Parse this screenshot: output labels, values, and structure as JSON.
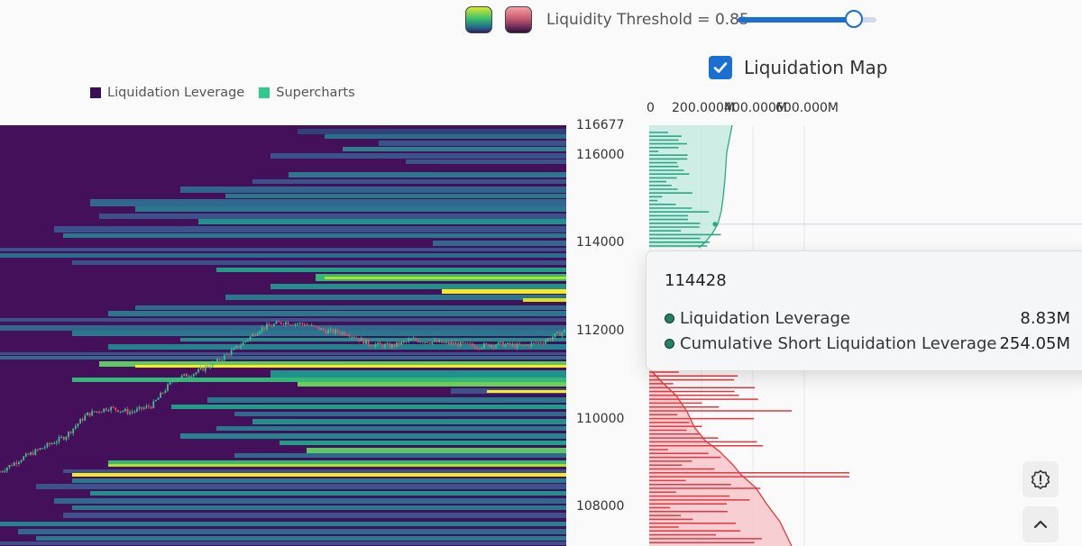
{
  "toolbar": {
    "threshold_label": "Liquidity Threshold = 0.85",
    "threshold_value": 0.85,
    "slider_fraction": 0.84,
    "palette_options": [
      "viridis-swatch",
      "red-swatch"
    ],
    "liquidation_map_label": "Liquidation Map",
    "liquidation_map_checked": true
  },
  "legend": {
    "items": [
      {
        "label": "Liquidation Leverage",
        "color": "#3b0f55"
      },
      {
        "label": "Supercharts",
        "color": "#2ecc8a"
      }
    ]
  },
  "y_axis": {
    "ticks": [
      "116677",
      "116000",
      "114000",
      "112000",
      "110000",
      "108000"
    ],
    "tick_values": [
      116677,
      116000,
      114000,
      112000,
      110000,
      108000
    ]
  },
  "profile_axis": {
    "ticks": [
      "0",
      "200.000M",
      "400.000M",
      "600.000M"
    ],
    "tick_values": [
      0,
      200,
      400,
      600
    ]
  },
  "tooltip": {
    "price": "114428",
    "rows": [
      {
        "name": "Liquidation Leverage",
        "value": "8.83M"
      },
      {
        "name": "Cumulative Short Liquidation Leverage",
        "value": "254.05M"
      }
    ]
  },
  "colors": {
    "heatmap_bg": "#44105a",
    "viridis_low": "#3b528b",
    "viridis_mid": "#21918c",
    "viridis_high": "#5ec962",
    "viridis_max": "#fde725",
    "short_liq": "#2aa784",
    "long_liq": "#e3383f",
    "accent": "#1a6fd1"
  },
  "buttons": {
    "alert_icon": "alert-badge-icon",
    "scroll_top_icon": "chevron-up-icon"
  },
  "chart_data": {
    "type": "heatmap",
    "title": "",
    "xlabel": "",
    "ylabel": "",
    "ylim": [
      107100,
      116677
    ],
    "series": [
      {
        "name": "Liquidation Leverage"
      },
      {
        "name": "Supercharts"
      }
    ],
    "price_path": [
      108800,
      109100,
      109350,
      109600,
      110100,
      110250,
      110150,
      110300,
      110900,
      111050,
      111300,
      111650,
      112050,
      112200,
      112150,
      112000,
      111950,
      111700,
      111650,
      111800,
      111750,
      111700,
      111650,
      111700,
      111650,
      111750,
      112000
    ],
    "profile_xlim": [
      0,
      600
    ],
    "cumulative_short_at_114428": 254.05,
    "liquidation_leverage_at_114428": 8.83
  }
}
